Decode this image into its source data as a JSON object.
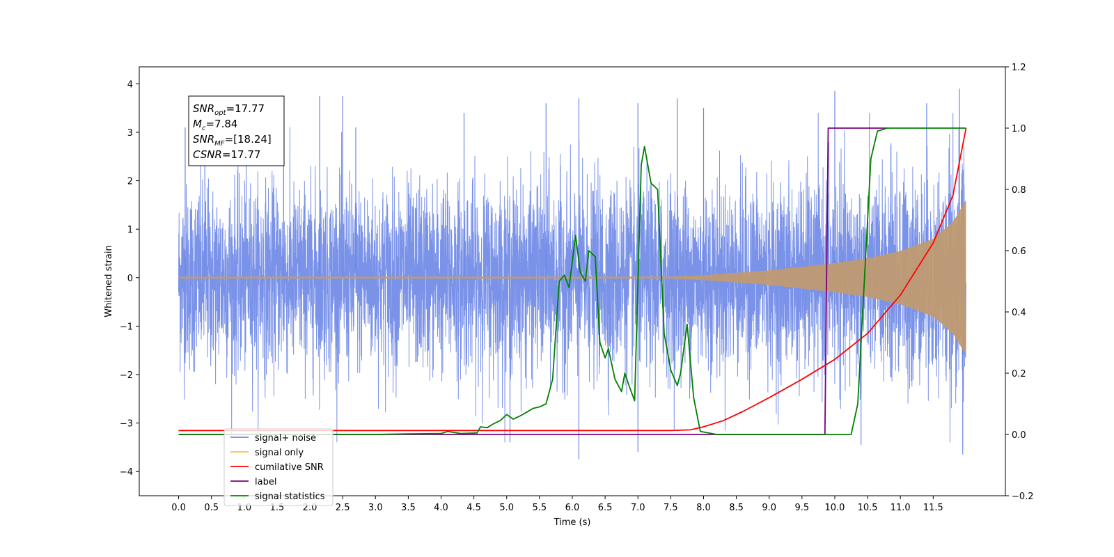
{
  "chart_data": {
    "type": "line",
    "xlabel": "Time (s)",
    "ylabel": "Whitened strain",
    "xlim": [
      -0.6,
      12.6
    ],
    "ylim": [
      -4.5,
      4.35
    ],
    "y2lim": [
      -0.2,
      1.2
    ],
    "x_ticks": [
      "0.0",
      "0.5",
      "1.0",
      "1.5",
      "2.0",
      "2.5",
      "3.0",
      "3.5",
      "4.0",
      "4.5",
      "5.0",
      "5.5",
      "6.0",
      "6.5",
      "7.0",
      "7.5",
      "8.0",
      "8.5",
      "9.0",
      "9.5",
      "10.0",
      "10.5",
      "11.0",
      "11.5"
    ],
    "y_ticks": [
      "−4",
      "−3",
      "−2",
      "−1",
      "0",
      "1",
      "2",
      "3",
      "4"
    ],
    "y2_ticks": [
      "−0.2",
      "0.0",
      "0.2",
      "0.4",
      "0.6",
      "0.8",
      "1.0",
      "1.2"
    ],
    "colors": {
      "noise": "#6b86e6",
      "signal": "#ffc04d",
      "signal_fill": "#c09b72",
      "cumulative": "#ff0000",
      "label": "#7b007b",
      "statistics": "#008000"
    },
    "annotation": [
      {
        "base": "SNR",
        "sub": "opt",
        "value": "=17.77"
      },
      {
        "base": "M",
        "sub": "c",
        "value": "=7.84"
      },
      {
        "base": "SNR",
        "sub": "MF",
        "value": "=[18.24]"
      },
      {
        "base": "CSNR",
        "sub": "",
        "value": "=17.77"
      }
    ],
    "legend": {
      "placement": "lower-left",
      "entries": [
        {
          "label": "signal+ noise",
          "color": "#6b86e6"
        },
        {
          "label": "signal only",
          "color": "#ffc04d"
        },
        {
          "label": "cumilative SNR",
          "color": "#ff0000"
        },
        {
          "label": "label",
          "color": "#7b007b"
        },
        {
          "label": "signal statistics",
          "color": "#008000"
        }
      ]
    },
    "series": [
      {
        "name": "signal+ noise",
        "axis": "left",
        "kind": "noise",
        "x_range": [
          0.0,
          12.0
        ],
        "approx_envelope": 2.6,
        "extreme_peaks": [
          {
            "x": 0.1,
            "y": 3.1
          },
          {
            "x": 0.4,
            "y": 3.0
          },
          {
            "x": 1.6,
            "y": 3.5
          },
          {
            "x": 2.15,
            "y": 3.75
          },
          {
            "x": 2.5,
            "y": 3.75
          },
          {
            "x": 2.7,
            "y": 3.1
          },
          {
            "x": 4.35,
            "y": 3.4
          },
          {
            "x": 5.6,
            "y": 3.6
          },
          {
            "x": 6.1,
            "y": 3.7
          },
          {
            "x": 7.0,
            "y": 3.6
          },
          {
            "x": 7.6,
            "y": 3.7
          },
          {
            "x": 8.0,
            "y": 3.5
          },
          {
            "x": 10.0,
            "y": 3.85
          },
          {
            "x": 11.4,
            "y": 3.6
          },
          {
            "x": 11.9,
            "y": 3.9
          },
          {
            "x": 6.1,
            "y": -3.75
          },
          {
            "x": 7.0,
            "y": -3.6
          },
          {
            "x": 10.4,
            "y": -3.45
          },
          {
            "x": 11.95,
            "y": -3.65
          },
          {
            "x": 5.05,
            "y": -3.4
          }
        ]
      },
      {
        "name": "signal only",
        "axis": "left",
        "kind": "chirp",
        "x_range": [
          0.0,
          12.0
        ],
        "envelope": [
          {
            "x": 0.0,
            "y": 0.02
          },
          {
            "x": 7.5,
            "y": 0.02
          },
          {
            "x": 8.0,
            "y": 0.05
          },
          {
            "x": 9.0,
            "y": 0.15
          },
          {
            "x": 10.0,
            "y": 0.3
          },
          {
            "x": 10.5,
            "y": 0.4
          },
          {
            "x": 11.0,
            "y": 0.55
          },
          {
            "x": 11.5,
            "y": 0.8
          },
          {
            "x": 11.8,
            "y": 1.15
          },
          {
            "x": 12.0,
            "y": 1.6
          }
        ]
      },
      {
        "name": "cumilative SNR",
        "axis": "right",
        "points": [
          {
            "x": 0.0,
            "y": 0.012
          },
          {
            "x": 0.02,
            "y": 0.013
          },
          {
            "x": 7.5,
            "y": 0.013
          },
          {
            "x": 7.8,
            "y": 0.015
          },
          {
            "x": 8.0,
            "y": 0.025
          },
          {
            "x": 8.3,
            "y": 0.045
          },
          {
            "x": 8.6,
            "y": 0.075
          },
          {
            "x": 9.0,
            "y": 0.12
          },
          {
            "x": 9.5,
            "y": 0.18
          },
          {
            "x": 10.0,
            "y": 0.245
          },
          {
            "x": 10.5,
            "y": 0.33
          },
          {
            "x": 11.0,
            "y": 0.455
          },
          {
            "x": 11.5,
            "y": 0.625
          },
          {
            "x": 11.8,
            "y": 0.78
          },
          {
            "x": 12.0,
            "y": 1.0
          }
        ]
      },
      {
        "name": "label",
        "axis": "right",
        "points": [
          {
            "x": 0.0,
            "y": 0.0
          },
          {
            "x": 9.85,
            "y": 0.0
          },
          {
            "x": 9.9,
            "y": 1.0
          },
          {
            "x": 10.8,
            "y": 1.0
          }
        ]
      },
      {
        "name": "signal statistics",
        "axis": "right",
        "points": [
          {
            "x": 0.0,
            "y": 0.0
          },
          {
            "x": 3.0,
            "y": 0.0
          },
          {
            "x": 3.5,
            "y": 0.002
          },
          {
            "x": 4.0,
            "y": 0.003
          },
          {
            "x": 4.1,
            "y": 0.01
          },
          {
            "x": 4.3,
            "y": 0.003
          },
          {
            "x": 4.55,
            "y": 0.005
          },
          {
            "x": 4.6,
            "y": 0.025
          },
          {
            "x": 4.7,
            "y": 0.022
          },
          {
            "x": 4.8,
            "y": 0.035
          },
          {
            "x": 4.9,
            "y": 0.045
          },
          {
            "x": 5.0,
            "y": 0.065
          },
          {
            "x": 5.1,
            "y": 0.05
          },
          {
            "x": 5.2,
            "y": 0.06
          },
          {
            "x": 5.3,
            "y": 0.072
          },
          {
            "x": 5.4,
            "y": 0.085
          },
          {
            "x": 5.5,
            "y": 0.09
          },
          {
            "x": 5.6,
            "y": 0.1
          },
          {
            "x": 5.7,
            "y": 0.18
          },
          {
            "x": 5.8,
            "y": 0.5
          },
          {
            "x": 5.88,
            "y": 0.52
          },
          {
            "x": 5.95,
            "y": 0.48
          },
          {
            "x": 6.05,
            "y": 0.65
          },
          {
            "x": 6.12,
            "y": 0.53
          },
          {
            "x": 6.2,
            "y": 0.5
          },
          {
            "x": 6.25,
            "y": 0.6
          },
          {
            "x": 6.35,
            "y": 0.58
          },
          {
            "x": 6.42,
            "y": 0.3
          },
          {
            "x": 6.5,
            "y": 0.25
          },
          {
            "x": 6.55,
            "y": 0.28
          },
          {
            "x": 6.65,
            "y": 0.18
          },
          {
            "x": 6.75,
            "y": 0.14
          },
          {
            "x": 6.8,
            "y": 0.2
          },
          {
            "x": 6.88,
            "y": 0.15
          },
          {
            "x": 6.95,
            "y": 0.11
          },
          {
            "x": 7.05,
            "y": 0.88
          },
          {
            "x": 7.1,
            "y": 0.94
          },
          {
            "x": 7.2,
            "y": 0.82
          },
          {
            "x": 7.3,
            "y": 0.8
          },
          {
            "x": 7.4,
            "y": 0.33
          },
          {
            "x": 7.5,
            "y": 0.21
          },
          {
            "x": 7.6,
            "y": 0.16
          },
          {
            "x": 7.65,
            "y": 0.2
          },
          {
            "x": 7.75,
            "y": 0.36
          },
          {
            "x": 7.85,
            "y": 0.12
          },
          {
            "x": 7.95,
            "y": 0.01
          },
          {
            "x": 8.2,
            "y": 0.0
          },
          {
            "x": 10.25,
            "y": 0.0
          },
          {
            "x": 10.35,
            "y": 0.1
          },
          {
            "x": 10.45,
            "y": 0.5
          },
          {
            "x": 10.55,
            "y": 0.9
          },
          {
            "x": 10.65,
            "y": 0.99
          },
          {
            "x": 10.8,
            "y": 1.0
          },
          {
            "x": 12.0,
            "y": 1.0
          }
        ]
      }
    ]
  }
}
